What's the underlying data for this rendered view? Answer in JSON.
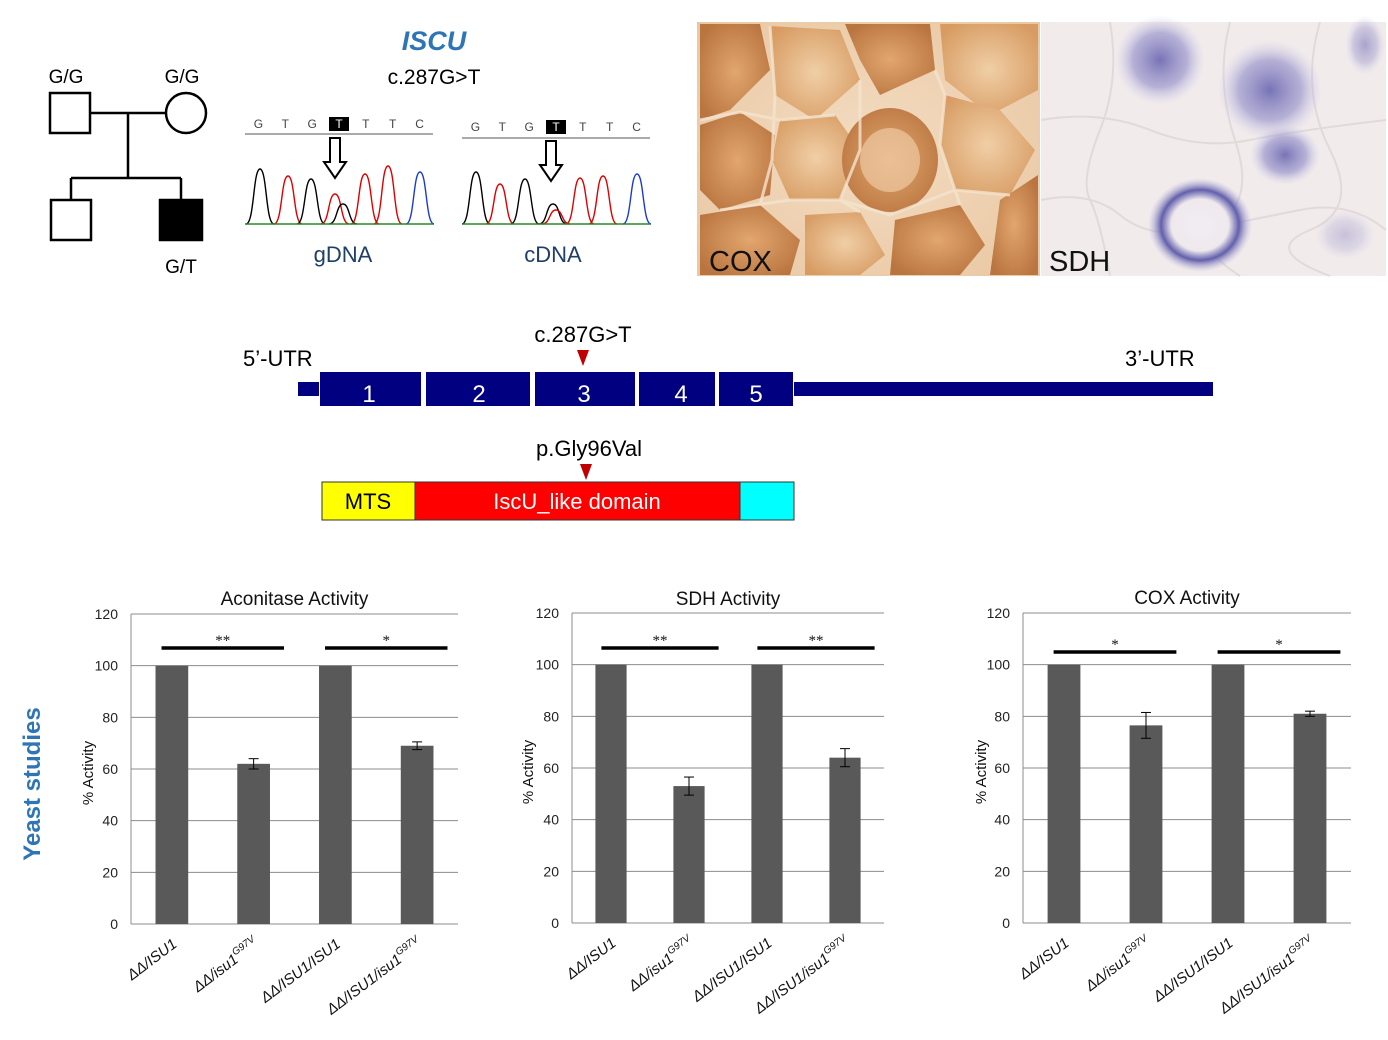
{
  "gene": "ISCU",
  "variant_label": "c.287G>T",
  "pedigree": {
    "father_genotype": "G/G",
    "mother_genotype": "G/G",
    "proband_genotype": "G/T"
  },
  "chromatograms": [
    {
      "bases": [
        "G",
        "T",
        "G",
        "T",
        "T",
        "T",
        "C"
      ],
      "highlight_index": 3,
      "label": "gDNA"
    },
    {
      "bases": [
        "G",
        "T",
        "G",
        "T",
        "T",
        "T",
        "C"
      ],
      "highlight_index": 3,
      "label": "cDNA"
    }
  ],
  "histology": [
    {
      "label": "COX",
      "color": "#c98a52"
    },
    {
      "label": "SDH",
      "color": "#8a86c4"
    }
  ],
  "gene_structure": {
    "utr5_label": "5’-UTR",
    "utr3_label": "3’-UTR",
    "mutation_label": "c.287G>T",
    "exons": [
      "1",
      "2",
      "3",
      "4",
      "5"
    ],
    "color": "#000080"
  },
  "protein": {
    "mutation_label": "p.Gly96Val",
    "domains": [
      {
        "label": "MTS",
        "color": "#ffff00"
      },
      {
        "label": "IscU_like domain",
        "color": "#ff0000"
      },
      {
        "label": "",
        "color": "#00ffff"
      }
    ],
    "marker_color": "#c00000"
  },
  "side_label": "Yeast studies",
  "side_label_color": "#2e75b6",
  "chart_data": [
    {
      "type": "bar",
      "title": "Aconitase Activity",
      "ylabel": "% Activity",
      "xlabel": "",
      "ylim": [
        0,
        120
      ],
      "yticks": [
        0,
        20,
        40,
        60,
        80,
        100,
        120
      ],
      "grid": true,
      "bar_color": "#595959",
      "categories": [
        {
          "base": "ΔΔ/ISU1",
          "sup": ""
        },
        {
          "base": "ΔΔ/isu1",
          "sup": "G97V"
        },
        {
          "base": "ΔΔ/ISU1/ISU1",
          "sup": ""
        },
        {
          "base": "ΔΔ/ISU1/isu1",
          "sup": "G97V"
        }
      ],
      "values": [
        100,
        62,
        100,
        69
      ],
      "errors": [
        0,
        2,
        0,
        1.5
      ],
      "significance": [
        {
          "from": 0,
          "to": 1,
          "label": "**"
        },
        {
          "from": 2,
          "to": 3,
          "label": "*"
        }
      ]
    },
    {
      "type": "bar",
      "title": "SDH Activity",
      "ylabel": "% Activity",
      "xlabel": "",
      "ylim": [
        0,
        120
      ],
      "yticks": [
        0,
        20,
        40,
        60,
        80,
        100,
        120
      ],
      "grid": true,
      "bar_color": "#595959",
      "categories": [
        {
          "base": "ΔΔ/ISU1",
          "sup": ""
        },
        {
          "base": "ΔΔ/isu1",
          "sup": "G97V"
        },
        {
          "base": "ΔΔ/ISU1/ISU1",
          "sup": ""
        },
        {
          "base": "ΔΔ/ISU1/isu1",
          "sup": "G97V"
        }
      ],
      "values": [
        100,
        53,
        100,
        64
      ],
      "errors": [
        0,
        3.5,
        0,
        3.5
      ],
      "significance": [
        {
          "from": 0,
          "to": 1,
          "label": "**"
        },
        {
          "from": 2,
          "to": 3,
          "label": "**"
        }
      ]
    },
    {
      "type": "bar",
      "title": "COX Activity",
      "ylabel": "% Activity",
      "xlabel": "",
      "ylim": [
        0,
        120
      ],
      "yticks": [
        0,
        20,
        40,
        60,
        80,
        100,
        120
      ],
      "grid": true,
      "bar_color": "#595959",
      "categories": [
        {
          "base": "ΔΔ/ISU1",
          "sup": ""
        },
        {
          "base": "ΔΔ/isu1",
          "sup": "G97V"
        },
        {
          "base": "ΔΔ/ISU1/ISU1",
          "sup": ""
        },
        {
          "base": "ΔΔ/ISU1/isu1",
          "sup": "G97V"
        }
      ],
      "values": [
        100,
        76.5,
        100,
        81
      ],
      "errors": [
        0,
        5,
        0,
        1
      ],
      "significance": [
        {
          "from": 0,
          "to": 1,
          "label": "*"
        },
        {
          "from": 2,
          "to": 3,
          "label": "*"
        }
      ]
    }
  ]
}
